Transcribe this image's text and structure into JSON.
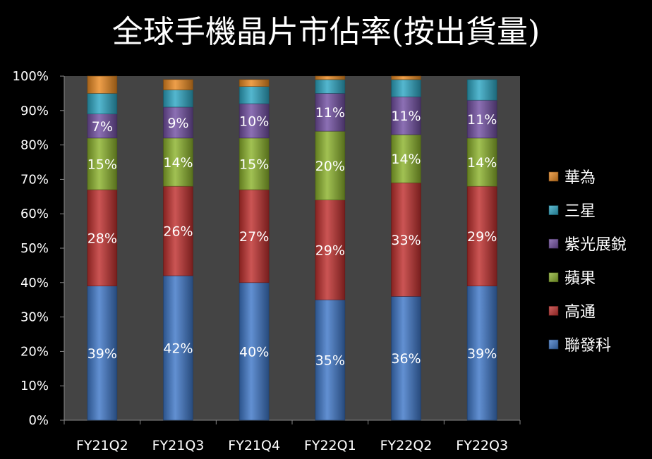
{
  "chart_data": {
    "type": "bar",
    "stacked": true,
    "title": "全球手機晶片市佔率(按出貨量)",
    "categories": [
      "FY21Q2",
      "FY21Q3",
      "FY21Q4",
      "FY22Q1",
      "FY22Q2",
      "FY22Q3"
    ],
    "y_ticks": [
      "0%",
      "10%",
      "20%",
      "30%",
      "40%",
      "50%",
      "60%",
      "70%",
      "80%",
      "90%",
      "100%"
    ],
    "ylim": [
      0,
      100
    ],
    "grid": false,
    "legend_position": "right",
    "series": [
      {
        "name": "聯發科",
        "color": "#3f78c8",
        "values": [
          39,
          42,
          40,
          35,
          36,
          39
        ],
        "labels": [
          "39%",
          "42%",
          "40%",
          "35%",
          "36%",
          "39%"
        ]
      },
      {
        "name": "高通",
        "color": "#c0302e",
        "values": [
          28,
          26,
          27,
          29,
          33,
          29
        ],
        "labels": [
          "28%",
          "26%",
          "27%",
          "29%",
          "33%",
          "29%"
        ]
      },
      {
        "name": "蘋果",
        "color": "#8cb32d",
        "values": [
          15,
          14,
          15,
          20,
          14,
          14
        ],
        "labels": [
          "15%",
          "14%",
          "15%",
          "20%",
          "14%",
          "14%"
        ]
      },
      {
        "name": "紫光展銳",
        "color": "#7350a3",
        "values": [
          7,
          9,
          10,
          11,
          11,
          11
        ],
        "labels": [
          "7%",
          "9%",
          "10%",
          "11%",
          "11%",
          "11%"
        ]
      },
      {
        "name": "三星",
        "color": "#2ea7c4",
        "values": [
          6,
          5,
          5,
          4,
          5,
          6
        ],
        "labels": [
          "",
          "",
          "",
          "",
          "",
          ""
        ]
      },
      {
        "name": "華為",
        "color": "#ea8a22",
        "values": [
          5,
          3,
          2,
          1,
          1,
          0
        ],
        "labels": [
          "",
          "",
          "",
          "",
          "",
          ""
        ]
      }
    ]
  }
}
